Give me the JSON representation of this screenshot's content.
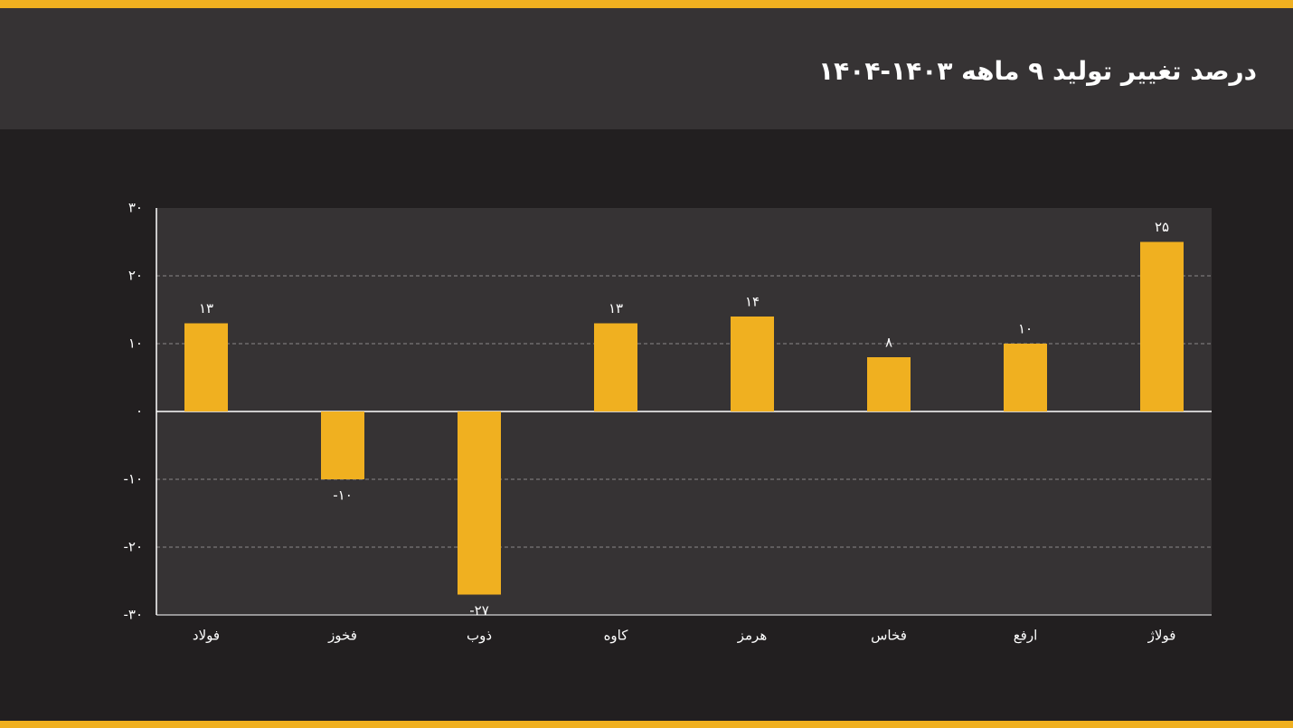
{
  "chart_data": {
    "type": "bar",
    "title": "درصد تغییر تولید ۹ ماهه ۱۴۰۳-۱۴۰۴",
    "categories": [
      "فولاد",
      "فخوز",
      "ذوب",
      "کاوه",
      "هرمز",
      "فخاس",
      "ارفع",
      "فولاژ"
    ],
    "values": [
      13,
      -10,
      -27,
      13,
      14,
      8,
      10,
      25
    ],
    "value_labels": [
      "۱۳",
      "-۱۰",
      "-۲۷",
      "۱۳",
      "۱۴",
      "۸",
      "۱۰",
      "۲۵"
    ],
    "color": "#f0b020",
    "ylim": [
      -30,
      30
    ],
    "yticks": [
      {
        "value": -30,
        "label": "-۳۰"
      },
      {
        "value": -20,
        "label": "-۲۰"
      },
      {
        "value": -10,
        "label": "-۱۰"
      },
      {
        "value": 0,
        "label": "۰"
      },
      {
        "value": 10,
        "label": "۱۰"
      },
      {
        "value": 20,
        "label": "۲۰"
      },
      {
        "value": 30,
        "label": "۳۰"
      }
    ],
    "grid": true
  }
}
